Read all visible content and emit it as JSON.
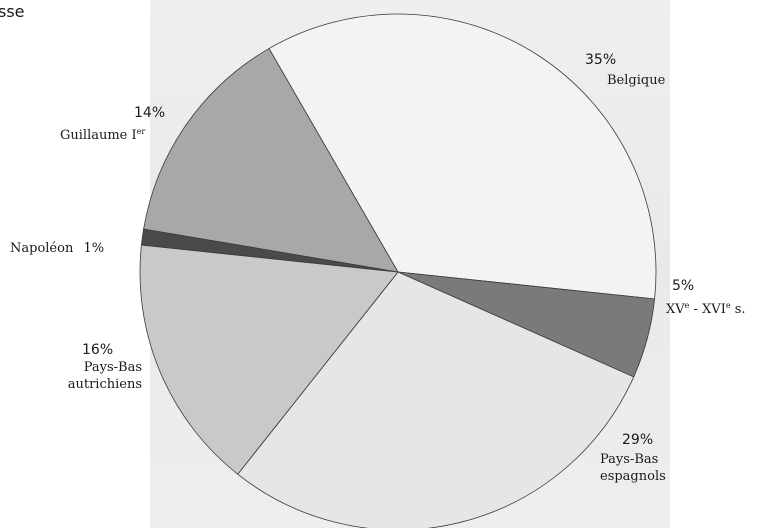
{
  "page_fragment": "sse",
  "chart_data": {
    "type": "pie",
    "slices": [
      {
        "label": "Belgique",
        "value": 35,
        "pct_label": "35%",
        "color": "#f3f3f3"
      },
      {
        "label": "XVe - XVIe s.",
        "value": 5,
        "pct_label": "5%",
        "color": "#7a7a7a"
      },
      {
        "label": "Pays-Bas espagnols",
        "value": 29,
        "pct_label": "29%",
        "color": "#e6e6e6"
      },
      {
        "label": "Pays-Bas autrichiens",
        "value": 16,
        "pct_label": "16%",
        "color": "#c9c9c9"
      },
      {
        "label": "Napoléon",
        "value": 1,
        "pct_label": "1%",
        "color": "#4a4a4a"
      },
      {
        "label": "Guillaume Ier",
        "value": 14,
        "pct_label": "14%",
        "color": "#a8a8a8"
      }
    ],
    "labels": {
      "belgique": {
        "pct": "35%",
        "name": "Belgique"
      },
      "xv": {
        "pct": "5%",
        "name_a": "XV",
        "sup_a": "e",
        "name_b": " - XVI",
        "sup_b": "e",
        "name_c": " s."
      },
      "espagnols": {
        "pct": "29%",
        "line1": "Pays-Bas",
        "line2": "espagnols"
      },
      "autrichiens": {
        "pct": "16%",
        "line1": "Pays-Bas",
        "line2": "autrichiens"
      },
      "napoleon": {
        "name": "Napoléon",
        "pct": "1%"
      },
      "guillaume": {
        "pct": "14%",
        "name": "Guillaume I",
        "sup": "er"
      }
    },
    "legend": "none"
  }
}
